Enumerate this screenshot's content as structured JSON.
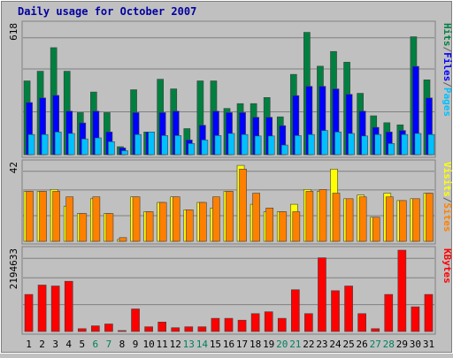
{
  "chart_data": {
    "type": "bar",
    "title": "Daily usage for October 2007",
    "categories": [
      "1",
      "2",
      "3",
      "4",
      "5",
      "6",
      "7",
      "8",
      "9",
      "10",
      "11",
      "12",
      "13",
      "14",
      "15",
      "16",
      "17",
      "18",
      "19",
      "20",
      "21",
      "22",
      "23",
      "24",
      "25",
      "26",
      "27",
      "28",
      "29",
      "30",
      "31"
    ],
    "weekend_days": [
      "6",
      "7",
      "13",
      "14",
      "20",
      "21",
      "27",
      "28"
    ],
    "panels": [
      {
        "id": "hits-files-pages",
        "ymax_label": "618",
        "ylim": [
          0,
          618
        ],
        "legend": [
          {
            "text": "Pages",
            "color": "#00c0ff"
          },
          {
            "text": "/",
            "color": "#606060"
          },
          {
            "text": "Files",
            "color": "#0000ff"
          },
          {
            "text": "/",
            "color": "#606060"
          },
          {
            "text": "Hits",
            "color": "#008040"
          }
        ],
        "series": [
          {
            "name": "Hits",
            "color": "#008040",
            "values": [
              351,
              397,
              509,
              397,
              200,
              298,
              200,
              38,
              309,
              108,
              359,
              313,
              124,
              351,
              351,
              220,
              243,
              243,
              272,
              180,
              382,
              582,
              421,
              491,
              440,
              292,
              185,
              152,
              142,
              561,
              356
            ]
          },
          {
            "name": "Files",
            "color": "#0000ff",
            "values": [
              248,
              270,
              282,
              207,
              151,
              207,
              108,
              32,
              200,
              108,
              200,
              207,
              70,
              140,
              207,
              200,
              200,
              178,
              178,
              138,
              281,
              325,
              325,
              313,
              287,
              207,
              130,
              108,
              115,
              420,
              270
            ]
          },
          {
            "name": "Pages",
            "color": "#00c0ff",
            "values": [
              96,
              96,
              108,
              101,
              75,
              80,
              62,
              19,
              96,
              108,
              91,
              91,
              53,
              70,
              91,
              101,
              96,
              89,
              89,
              46,
              91,
              96,
              115,
              108,
              101,
              89,
              96,
              53,
              96,
              101,
              96
            ]
          }
        ]
      },
      {
        "id": "visits-sites",
        "ymax_label": "42",
        "ylim": [
          0,
          42
        ],
        "legend": [
          {
            "text": "Sites",
            "color": "#ff8000"
          },
          {
            "text": "/",
            "color": "#606060"
          },
          {
            "text": "Visits",
            "color": "#ffff00"
          }
        ],
        "series": [
          {
            "name": "Visits",
            "color": "#ffff00",
            "values": [
              27,
              27,
              28,
              19,
              15,
              23,
              15,
              1,
              24,
              16,
              21,
              24,
              17,
              21,
              18,
              27,
              41,
              20,
              16,
              16,
              20,
              28,
              27,
              39,
              23,
              25,
              13,
              26,
              22,
              23,
              26
            ]
          },
          {
            "name": "Sites",
            "color": "#ff8000",
            "values": [
              27,
              27,
              27,
              24,
              15,
              24,
              15,
              2,
              24,
              16,
              21,
              24,
              17,
              21,
              24,
              27,
              39,
              26,
              18,
              16,
              16,
              27,
              28,
              26,
              23,
              24,
              13,
              24,
              22,
              23,
              26
            ]
          }
        ]
      },
      {
        "id": "kbytes",
        "ymax_label": "2194633",
        "ylim": [
          0,
          2194633
        ],
        "legend": [
          {
            "text": "KBytes",
            "color": "#ff0000"
          }
        ],
        "series": [
          {
            "name": "KBytes",
            "color": "#ff0000",
            "values": [
              1000000,
              1253000,
              1228000,
              1355000,
              76000,
              152000,
              203000,
              25000,
              608000,
              127000,
              255000,
              102000,
              127000,
              127000,
              355000,
              355000,
              305000,
              482000,
              532000,
              355000,
              1127000,
              482000,
              1989000,
              1101000,
              1228000,
              482000,
              76000,
              1000000,
              2194633,
              666000,
              1000000
            ]
          }
        ]
      }
    ]
  }
}
